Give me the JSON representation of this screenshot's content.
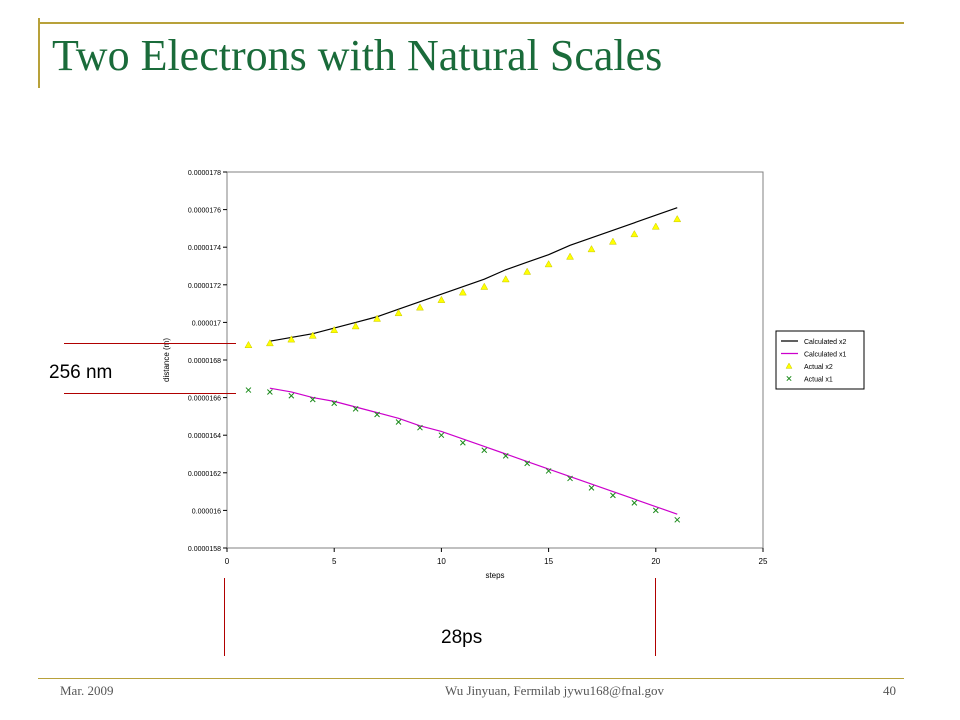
{
  "slide": {
    "title": "Two Electrons with Natural Scales",
    "footer_left": "Mar. 2009",
    "footer_center": "Wu Jinyuan, Fermilab jywu168@fnal.gov",
    "page_number": "40"
  },
  "annotations": {
    "distance_gap": "256 nm",
    "time_span": "28ps"
  },
  "colors": {
    "title": "#1a6b3a",
    "decoration": "#b8a13a",
    "annotation_lines": "#b00000",
    "calculated_x2": "#000000",
    "calculated_x1": "#cc00cc",
    "actual_x2": "#ffff00",
    "actual_x1": "#1a8a1a"
  },
  "chart_data": {
    "type": "line",
    "xlabel": "steps",
    "ylabel": "distance (m)",
    "xlim": [
      0,
      25
    ],
    "ylim": [
      1.58e-05,
      1.78e-05
    ],
    "xticks": [
      "0",
      "5",
      "10",
      "15",
      "20",
      "25"
    ],
    "yticks": [
      "0.0000158",
      "0.000016",
      "0.0000162",
      "0.0000164",
      "0.0000166",
      "0.0000168",
      "0.000017",
      "0.0000172",
      "0.0000174",
      "0.0000176",
      "0.0000178"
    ],
    "grid": false,
    "legend_position": "right",
    "series": [
      {
        "name": "Calculated x2",
        "kind": "line",
        "x": [
          2,
          3,
          4,
          5,
          6,
          7,
          8,
          9,
          10,
          11,
          12,
          13,
          14,
          15,
          16,
          17,
          18,
          19,
          20,
          21
        ],
        "y": [
          1.69e-05,
          1.692e-05,
          1.694e-05,
          1.697e-05,
          1.7e-05,
          1.703e-05,
          1.707e-05,
          1.711e-05,
          1.715e-05,
          1.719e-05,
          1.723e-05,
          1.728e-05,
          1.732e-05,
          1.736e-05,
          1.741e-05,
          1.745e-05,
          1.749e-05,
          1.753e-05,
          1.757e-05,
          1.761e-05
        ]
      },
      {
        "name": "Calculated x1",
        "kind": "line",
        "x": [
          2,
          3,
          4,
          5,
          6,
          7,
          8,
          9,
          10,
          11,
          12,
          13,
          14,
          15,
          16,
          17,
          18,
          19,
          20,
          21
        ],
        "y": [
          1.665e-05,
          1.663e-05,
          1.66e-05,
          1.658e-05,
          1.655e-05,
          1.652e-05,
          1.649e-05,
          1.645e-05,
          1.642e-05,
          1.638e-05,
          1.634e-05,
          1.63e-05,
          1.626e-05,
          1.622e-05,
          1.618e-05,
          1.614e-05,
          1.61e-05,
          1.606e-05,
          1.602e-05,
          1.598e-05
        ]
      },
      {
        "name": "Actual x2",
        "kind": "scatter",
        "marker": "triangle",
        "x": [
          1,
          2,
          3,
          4,
          5,
          6,
          7,
          8,
          9,
          10,
          11,
          12,
          13,
          14,
          15,
          16,
          17,
          18,
          19,
          20,
          21
        ],
        "y": [
          1.688e-05,
          1.689e-05,
          1.691e-05,
          1.693e-05,
          1.696e-05,
          1.698e-05,
          1.702e-05,
          1.705e-05,
          1.708e-05,
          1.712e-05,
          1.716e-05,
          1.719e-05,
          1.723e-05,
          1.727e-05,
          1.731e-05,
          1.735e-05,
          1.739e-05,
          1.743e-05,
          1.747e-05,
          1.751e-05,
          1.755e-05
        ]
      },
      {
        "name": "Actual x1",
        "kind": "scatter",
        "marker": "x",
        "x": [
          1,
          2,
          3,
          4,
          5,
          6,
          7,
          8,
          9,
          10,
          11,
          12,
          13,
          14,
          15,
          16,
          17,
          18,
          19,
          20,
          21
        ],
        "y": [
          1.664e-05,
          1.663e-05,
          1.661e-05,
          1.659e-05,
          1.657e-05,
          1.654e-05,
          1.651e-05,
          1.647e-05,
          1.644e-05,
          1.64e-05,
          1.636e-05,
          1.632e-05,
          1.629e-05,
          1.625e-05,
          1.621e-05,
          1.617e-05,
          1.612e-05,
          1.608e-05,
          1.604e-05,
          1.6e-05,
          1.595e-05
        ]
      }
    ]
  }
}
